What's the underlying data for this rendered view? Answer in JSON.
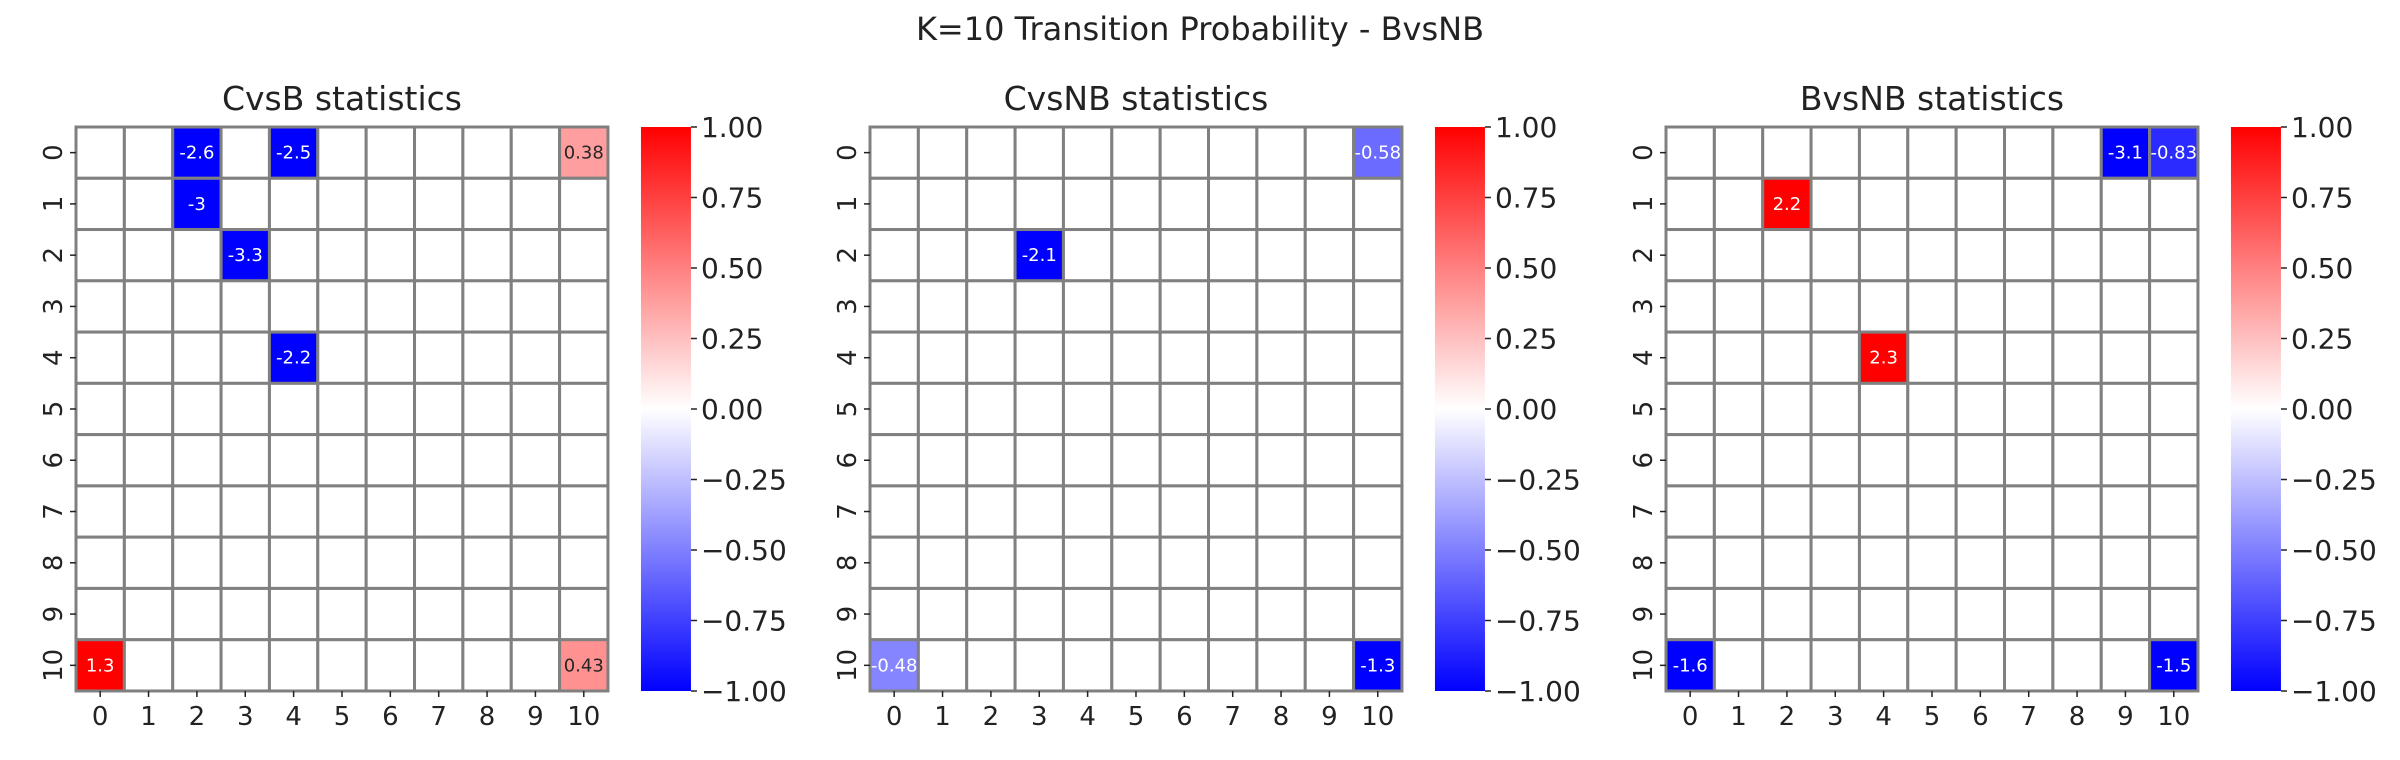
{
  "figure": {
    "title": "K=10 Transition Probability - BvsNB"
  },
  "chart_data": [
    {
      "type": "heatmap",
      "title": "CvsB statistics",
      "x_ticks": [
        "0",
        "1",
        "2",
        "3",
        "4",
        "5",
        "6",
        "7",
        "8",
        "9",
        "10"
      ],
      "y_ticks": [
        "0",
        "1",
        "2",
        "3",
        "4",
        "5",
        "6",
        "7",
        "8",
        "9",
        "10"
      ],
      "cells": [
        {
          "row": 0,
          "col": 2,
          "value": -2.6,
          "label": "-2.6"
        },
        {
          "row": 0,
          "col": 4,
          "value": -2.5,
          "label": "-2.5"
        },
        {
          "row": 0,
          "col": 10,
          "value": 0.38,
          "label": "0.38"
        },
        {
          "row": 1,
          "col": 2,
          "value": -3,
          "label": "-3"
        },
        {
          "row": 2,
          "col": 3,
          "value": -3.3,
          "label": "-3.3"
        },
        {
          "row": 4,
          "col": 4,
          "value": -2.2,
          "label": "-2.2"
        },
        {
          "row": 10,
          "col": 0,
          "value": 1.3,
          "label": "1.3"
        },
        {
          "row": 10,
          "col": 10,
          "value": 0.43,
          "label": "0.43"
        }
      ],
      "colorbar": {
        "range": [
          -1.0,
          1.0
        ],
        "ticks": [
          "1.00",
          "0.75",
          "0.50",
          "0.25",
          "0.00",
          "−0.25",
          "−0.50",
          "−0.75",
          "−1.00"
        ],
        "cmap": "bwr"
      }
    },
    {
      "type": "heatmap",
      "title": "CvsNB statistics",
      "x_ticks": [
        "0",
        "1",
        "2",
        "3",
        "4",
        "5",
        "6",
        "7",
        "8",
        "9",
        "10"
      ],
      "y_ticks": [
        "0",
        "1",
        "2",
        "3",
        "4",
        "5",
        "6",
        "7",
        "8",
        "9",
        "10"
      ],
      "cells": [
        {
          "row": 0,
          "col": 10,
          "value": -0.58,
          "label": "-0.58"
        },
        {
          "row": 2,
          "col": 3,
          "value": -2.1,
          "label": "-2.1"
        },
        {
          "row": 10,
          "col": 0,
          "value": -0.48,
          "label": "-0.48"
        },
        {
          "row": 10,
          "col": 10,
          "value": -1.3,
          "label": "-1.3"
        }
      ],
      "colorbar": {
        "range": [
          -1.0,
          1.0
        ],
        "ticks": [
          "1.00",
          "0.75",
          "0.50",
          "0.25",
          "0.00",
          "−0.25",
          "−0.50",
          "−0.75",
          "−1.00"
        ],
        "cmap": "bwr"
      }
    },
    {
      "type": "heatmap",
      "title": "BvsNB statistics",
      "x_ticks": [
        "0",
        "1",
        "2",
        "3",
        "4",
        "5",
        "6",
        "7",
        "8",
        "9",
        "10"
      ],
      "y_ticks": [
        "0",
        "1",
        "2",
        "3",
        "4",
        "5",
        "6",
        "7",
        "8",
        "9",
        "10"
      ],
      "cells": [
        {
          "row": 0,
          "col": 9,
          "value": -3.1,
          "label": "-3.1"
        },
        {
          "row": 0,
          "col": 10,
          "value": -0.83,
          "label": "-0.83"
        },
        {
          "row": 1,
          "col": 2,
          "value": 2.2,
          "label": "2.2"
        },
        {
          "row": 4,
          "col": 4,
          "value": 2.3,
          "label": "2.3"
        },
        {
          "row": 10,
          "col": 0,
          "value": -1.6,
          "label": "-1.6"
        },
        {
          "row": 10,
          "col": 10,
          "value": -1.5,
          "label": "-1.5"
        }
      ],
      "colorbar": {
        "range": [
          -1.0,
          1.0
        ],
        "ticks": [
          "1.00",
          "0.75",
          "0.50",
          "0.25",
          "0.00",
          "−0.25",
          "−0.50",
          "−0.75",
          "−1.00"
        ],
        "cmap": "bwr"
      }
    }
  ]
}
